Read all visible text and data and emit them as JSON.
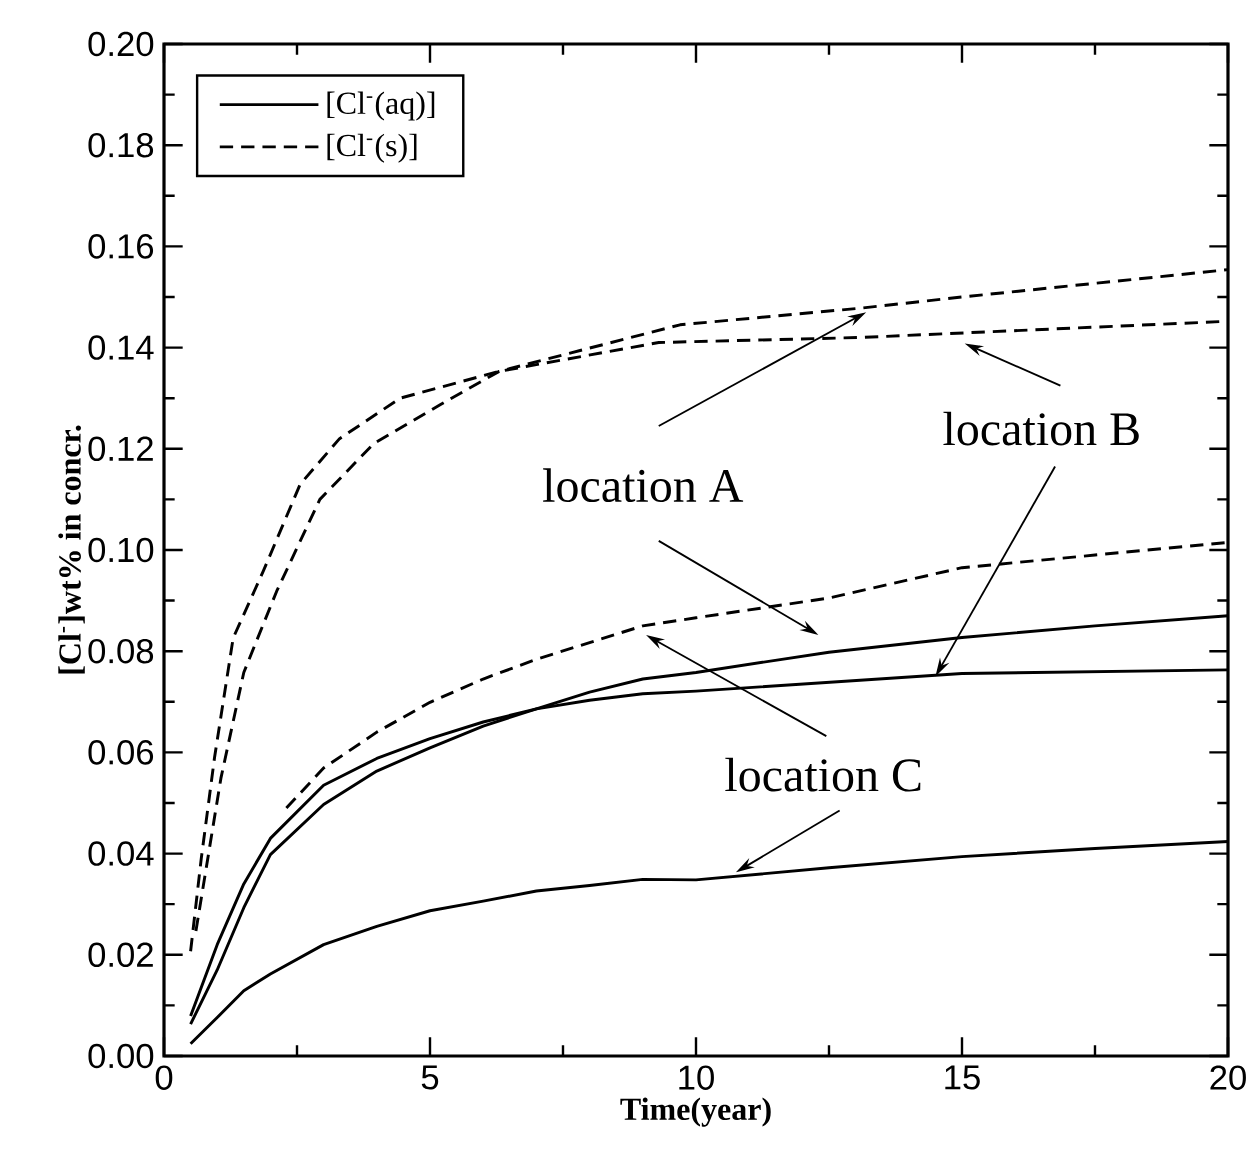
{
  "chart_data": {
    "type": "line",
    "xlabel": "Time(year)",
    "ylabel": "[Cl$^{-}$]wt% in concr.",
    "xlim": [
      0,
      20
    ],
    "xticks": [
      0,
      5,
      10,
      15,
      20
    ],
    "ylim": [
      0,
      0.2
    ],
    "yticks": [
      {
        "value": 0,
        "label": "0.00"
      },
      {
        "value": 0.02,
        "label": "0.02"
      },
      {
        "value": 0.04,
        "label": "0.04"
      },
      {
        "value": 0.06,
        "label": "0.06"
      },
      {
        "value": 0.08,
        "label": "0.08"
      },
      {
        "value": 0.1,
        "label": "0.10"
      },
      {
        "value": 0.12,
        "label": "0.12"
      },
      {
        "value": 0.14,
        "label": "0.14"
      },
      {
        "value": 0.16,
        "label": "0.16"
      },
      {
        "value": 0.18,
        "label": "0.18"
      },
      {
        "value": 0.2,
        "label": "0.20"
      }
    ],
    "grid": false,
    "legend": "top left",
    "marker": "none",
    "annotations": [
      {
        "text": "location A",
        "x": 13.2,
        "y": 0.147
      },
      {
        "text": "location B",
        "x": 15.05,
        "y": 0.1408
      },
      {
        "text": "location C",
        "x": 9.06,
        "y": 0.0832
      }
    ],
    "series": [
      {
        "name": "[Cl$^{-}$(aq)]",
        "color": "#000000",
        "line_style": "solid",
        "x": [
          0.5,
          1,
          1.5,
          2,
          3,
          4,
          5,
          6,
          7,
          8,
          9,
          10,
          12.5,
          15,
          17.5,
          20
        ],
        "values": [
          0.0063,
          0.017,
          0.0293,
          0.0398,
          0.0497,
          0.0563,
          0.0609,
          0.0652,
          0.0686,
          0.0719,
          0.0745,
          0.0758,
          0.0798,
          0.0827,
          0.085,
          0.087
        ]
      },
      {
        "name": "[Cl$^{-}$(s)]",
        "color": "#000000",
        "line_style": "dashed",
        "x": [
          0.6,
          1.07,
          1.5,
          2.12,
          2.93,
          3.94,
          5.19,
          6.3,
          9.7,
          13.1,
          15,
          20
        ],
        "values": [
          0.0247,
          0.0549,
          0.0758,
          0.0919,
          0.11,
          0.121,
          0.1287,
          0.1353,
          0.1445,
          0.1478,
          0.15,
          0.1554
        ]
      },
      {
        "color": "#000000",
        "line_style": "solid",
        "x": [
          0.5,
          1,
          1.5,
          2,
          3,
          4,
          5,
          6,
          7,
          8,
          9,
          10,
          15,
          20
        ],
        "values": [
          0.0079,
          0.022,
          0.034,
          0.043,
          0.0535,
          0.0588,
          0.0627,
          0.066,
          0.0686,
          0.0703,
          0.0716,
          0.0721,
          0.0756,
          0.0763
        ]
      },
      {
        "color": "#000000",
        "line_style": "dashed",
        "x": [
          0.5,
          0.7,
          0.95,
          1.3,
          1.87,
          2.56,
          3.3,
          4.44,
          6.3,
          9.3,
          13.1,
          20
        ],
        "values": [
          0.0207,
          0.039,
          0.059,
          0.0826,
          0.0959,
          0.113,
          0.122,
          0.13,
          0.1353,
          0.141,
          0.142,
          0.1452
        ]
      },
      {
        "color": "#000000",
        "line_style": "solid",
        "x": [
          0.5,
          1,
          1.5,
          2,
          3,
          4,
          5,
          6,
          7,
          8,
          9,
          10,
          12.5,
          15,
          17.5,
          20
        ],
        "values": [
          0.0024,
          0.0076,
          0.0129,
          0.0162,
          0.022,
          0.0256,
          0.0287,
          0.0306,
          0.0326,
          0.0337,
          0.0349,
          0.0348,
          0.0372,
          0.0394,
          0.041,
          0.0424
        ]
      },
      {
        "color": "#000000",
        "line_style": "dashed",
        "x": [
          2.3,
          3,
          4,
          5,
          6,
          7,
          8,
          9,
          10,
          12.5,
          15,
          17.5,
          20
        ],
        "values": [
          0.049,
          0.0569,
          0.064,
          0.0699,
          0.0745,
          0.0784,
          0.0817,
          0.085,
          0.0866,
          0.0905,
          0.0965,
          0.099,
          0.1015
        ]
      }
    ]
  }
}
